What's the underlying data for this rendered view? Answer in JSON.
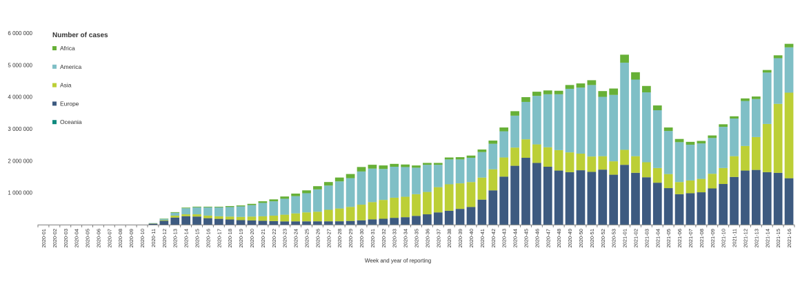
{
  "chart_data": {
    "type": "stacked-bar",
    "title": "",
    "xlabel": "Week and year of reporting",
    "ylabel": "",
    "ylim": [
      0,
      6000000
    ],
    "yticks": [
      0,
      1000000,
      2000000,
      3000000,
      4000000,
      5000000,
      6000000
    ],
    "ytick_labels": [
      "",
      "1 000 000",
      "2 000 000",
      "3 000 000",
      "4 000 000",
      "5 000 000",
      "6 000 000"
    ],
    "legend_title": "Number of cases",
    "legend_position": "top-left",
    "categories": [
      "2020-01",
      "2020-02",
      "2020-03",
      "2020-04",
      "2020-05",
      "2020-06",
      "2020-07",
      "2020-08",
      "2020-09",
      "2020-10",
      "2020-11",
      "2020-12",
      "2020-13",
      "2020-14",
      "2020-15",
      "2020-16",
      "2020-17",
      "2020-18",
      "2020-19",
      "2020-20",
      "2020-21",
      "2020-22",
      "2020-23",
      "2020-24",
      "2020-25",
      "2020-26",
      "2020-27",
      "2020-28",
      "2020-29",
      "2020-30",
      "2020-31",
      "2020-32",
      "2020-33",
      "2020-34",
      "2020-35",
      "2020-36",
      "2020-37",
      "2020-38",
      "2020-39",
      "2020-40",
      "2020-41",
      "2020-42",
      "2020-43",
      "2020-44",
      "2020-45",
      "2020-46",
      "2020-47",
      "2020-48",
      "2020-49",
      "2020-50",
      "2020-51",
      "2020-52",
      "2020-53",
      "2021-01",
      "2021-02",
      "2021-03",
      "2021-04",
      "2021-05",
      "2021-06",
      "2021-07",
      "2021-08",
      "2021-09",
      "2021-10",
      "2021-11",
      "2021-12",
      "2021-13",
      "2021-14",
      "2021-15",
      "2021-16"
    ],
    "series": [
      {
        "name": "Oceania",
        "color": "#0f8a7e",
        "values": [
          0,
          0,
          0,
          0,
          0,
          0,
          0,
          0,
          0,
          0,
          0,
          0,
          1000,
          3000,
          3000,
          2000,
          1000,
          1000,
          1000,
          1000,
          1000,
          1000,
          1000,
          2000,
          3000,
          4000,
          4000,
          5000,
          5000,
          5000,
          5000,
          4000,
          3000,
          3000,
          3000,
          3000,
          3000,
          3000,
          3000,
          3000,
          3000,
          3000,
          3000,
          3000,
          3000,
          3000,
          3000,
          3000,
          3000,
          3000,
          3000,
          3000,
          3000,
          3000,
          3000,
          3000,
          3000,
          3000,
          3000,
          3000,
          3000,
          3000,
          3000,
          3000,
          3000,
          3000,
          3000,
          3000,
          3000
        ]
      },
      {
        "name": "Europe",
        "color": "#3d5a80",
        "values": [
          0,
          0,
          0,
          0,
          0,
          0,
          0,
          0,
          0,
          0,
          30000,
          120000,
          220000,
          260000,
          250000,
          200000,
          180000,
          160000,
          140000,
          130000,
          120000,
          110000,
          100000,
          100000,
          100000,
          100000,
          100000,
          100000,
          110000,
          130000,
          160000,
          180000,
          210000,
          230000,
          270000,
          320000,
          380000,
          430000,
          490000,
          550000,
          780000,
          1070000,
          1500000,
          1840000,
          2090000,
          1930000,
          1810000,
          1690000,
          1640000,
          1700000,
          1650000,
          1720000,
          1560000,
          1870000,
          1620000,
          1480000,
          1310000,
          1140000,
          950000,
          980000,
          1010000,
          1130000,
          1270000,
          1490000,
          1690000,
          1710000,
          1640000,
          1620000,
          1450000
        ]
      },
      {
        "name": "Asia",
        "color": "#bccf36",
        "values": [
          0,
          0,
          0,
          0,
          0,
          0,
          0,
          0,
          0,
          0,
          10000,
          20000,
          60000,
          60000,
          70000,
          80000,
          80000,
          90000,
          100000,
          120000,
          140000,
          170000,
          210000,
          250000,
          280000,
          300000,
          360000,
          400000,
          440000,
          490000,
          540000,
          590000,
          630000,
          640000,
          680000,
          700000,
          790000,
          830000,
          800000,
          780000,
          690000,
          660000,
          600000,
          570000,
          580000,
          580000,
          610000,
          640000,
          620000,
          520000,
          480000,
          420000,
          420000,
          470000,
          520000,
          470000,
          460000,
          440000,
          380000,
          400000,
          420000,
          460000,
          500000,
          650000,
          770000,
          1030000,
          1510000,
          2160000,
          2680000
        ]
      },
      {
        "name": "America",
        "color": "#7fbfc6",
        "values": [
          0,
          0,
          0,
          0,
          0,
          0,
          0,
          0,
          0,
          0,
          10000,
          40000,
          90000,
          190000,
          220000,
          260000,
          280000,
          300000,
          330000,
          360000,
          420000,
          450000,
          500000,
          540000,
          600000,
          700000,
          760000,
          850000,
          900000,
          1040000,
          1050000,
          970000,
          970000,
          930000,
          830000,
          850000,
          700000,
          780000,
          750000,
          760000,
          800000,
          800000,
          820000,
          1000000,
          1170000,
          1520000,
          1660000,
          1750000,
          1990000,
          2070000,
          2240000,
          1860000,
          2080000,
          2730000,
          2400000,
          2190000,
          1810000,
          1350000,
          1250000,
          1120000,
          1110000,
          1120000,
          1290000,
          1180000,
          1410000,
          1190000,
          1610000,
          1430000,
          1420000
        ]
      },
      {
        "name": "Africa",
        "color": "#67b037",
        "values": [
          0,
          0,
          0,
          0,
          0,
          0,
          0,
          0,
          0,
          0,
          0,
          10000,
          20000,
          20000,
          20000,
          20000,
          20000,
          30000,
          30000,
          40000,
          50000,
          60000,
          70000,
          80000,
          90000,
          100000,
          110000,
          120000,
          130000,
          140000,
          120000,
          110000,
          90000,
          80000,
          70000,
          60000,
          60000,
          60000,
          70000,
          70000,
          80000,
          100000,
          120000,
          140000,
          150000,
          130000,
          120000,
          110000,
          120000,
          130000,
          150000,
          180000,
          200000,
          250000,
          230000,
          200000,
          150000,
          110000,
          100000,
          90000,
          80000,
          80000,
          80000,
          70000,
          80000,
          80000,
          80000,
          90000,
          110000
        ]
      }
    ]
  }
}
